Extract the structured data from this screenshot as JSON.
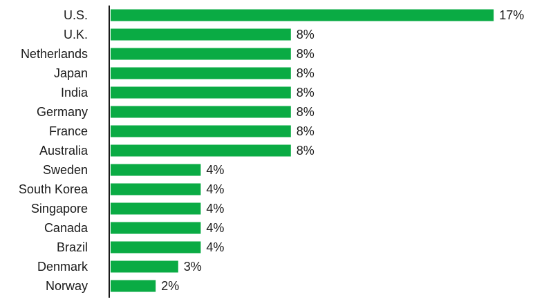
{
  "chart_data": {
    "type": "bar",
    "orientation": "horizontal",
    "categories": [
      "U.S.",
      "U.K.",
      "Netherlands",
      "Japan",
      "India",
      "Germany",
      "France",
      "Australia",
      "Sweden",
      "South Korea",
      "Singapore",
      "Canada",
      "Brazil",
      "Denmark",
      "Norway"
    ],
    "values": [
      17,
      8,
      8,
      8,
      8,
      8,
      8,
      8,
      4,
      4,
      4,
      4,
      4,
      3,
      2
    ],
    "value_labels": [
      "17%",
      "8%",
      "8%",
      "8%",
      "8%",
      "8%",
      "8%",
      "8%",
      "4%",
      "4%",
      "4%",
      "4%",
      "4%",
      "3%",
      "2%"
    ],
    "bar_color": "#0aab44",
    "axis_color": "#1a1a1a",
    "grid": false,
    "legend": "none"
  }
}
